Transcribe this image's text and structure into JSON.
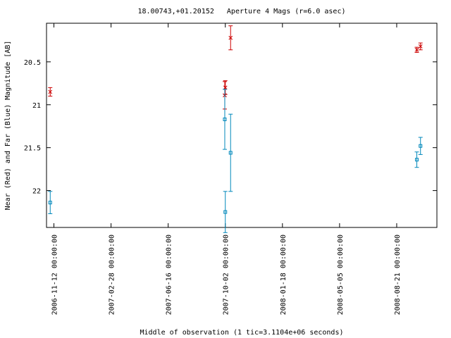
{
  "chart_data": {
    "type": "scatter",
    "title": "18.00743,+01.20152   Aperture 4 Mags (r=6.0 asec)",
    "xlabel": "Middle of observation (1 tic=3.1104e+06 seconds)",
    "ylabel": "Near (Red) and Far (Blue) Magnitude [AB]",
    "x_ticks": [
      "2006-11-12 00:00:00",
      "2007-02-28 00:00:00",
      "2007-06-16 00:00:00",
      "2007-10-02 00:00:00",
      "2008-01-18 00:00:00",
      "2008-05-05 00:00:00",
      "2008-08-21 00:00:00"
    ],
    "y_ticks": [
      "20.5",
      "21",
      "21.5",
      "22"
    ],
    "xlim": [
      "2006-10-29",
      "2008-11-05"
    ],
    "ylim": [
      22.43,
      20.05
    ],
    "y_inverted": true,
    "grid": false,
    "legend": "none",
    "series": [
      {
        "color": "#cc0000",
        "marker": "x",
        "points": [
          {
            "x": "2006-11-05",
            "y": 20.85,
            "yerr": 0.05
          },
          {
            "x": "2007-10-01",
            "y": 20.89,
            "yerr": 0.16
          },
          {
            "x": "2007-10-02",
            "y": 20.8,
            "yerr": 0.08
          },
          {
            "x": "2007-10-12",
            "y": 20.22,
            "yerr": 0.14
          },
          {
            "x": "2008-09-28",
            "y": 20.36,
            "yerr": 0.03
          },
          {
            "x": "2008-10-05",
            "y": 20.32,
            "yerr": 0.04
          }
        ]
      },
      {
        "color": "#0088bb",
        "marker": "square",
        "points": [
          {
            "x": "2006-11-05",
            "y": 22.14,
            "yerr": 0.13
          },
          {
            "x": "2007-10-01",
            "y": 21.17,
            "yerr": 0.35
          },
          {
            "x": "2007-10-02",
            "y": 22.25,
            "yerr": 0.24
          },
          {
            "x": "2007-10-12",
            "y": 21.56,
            "yerr": 0.45
          },
          {
            "x": "2008-09-28",
            "y": 21.64,
            "yerr": 0.09
          },
          {
            "x": "2008-10-05",
            "y": 21.48,
            "yerr": 0.1
          }
        ]
      }
    ]
  }
}
